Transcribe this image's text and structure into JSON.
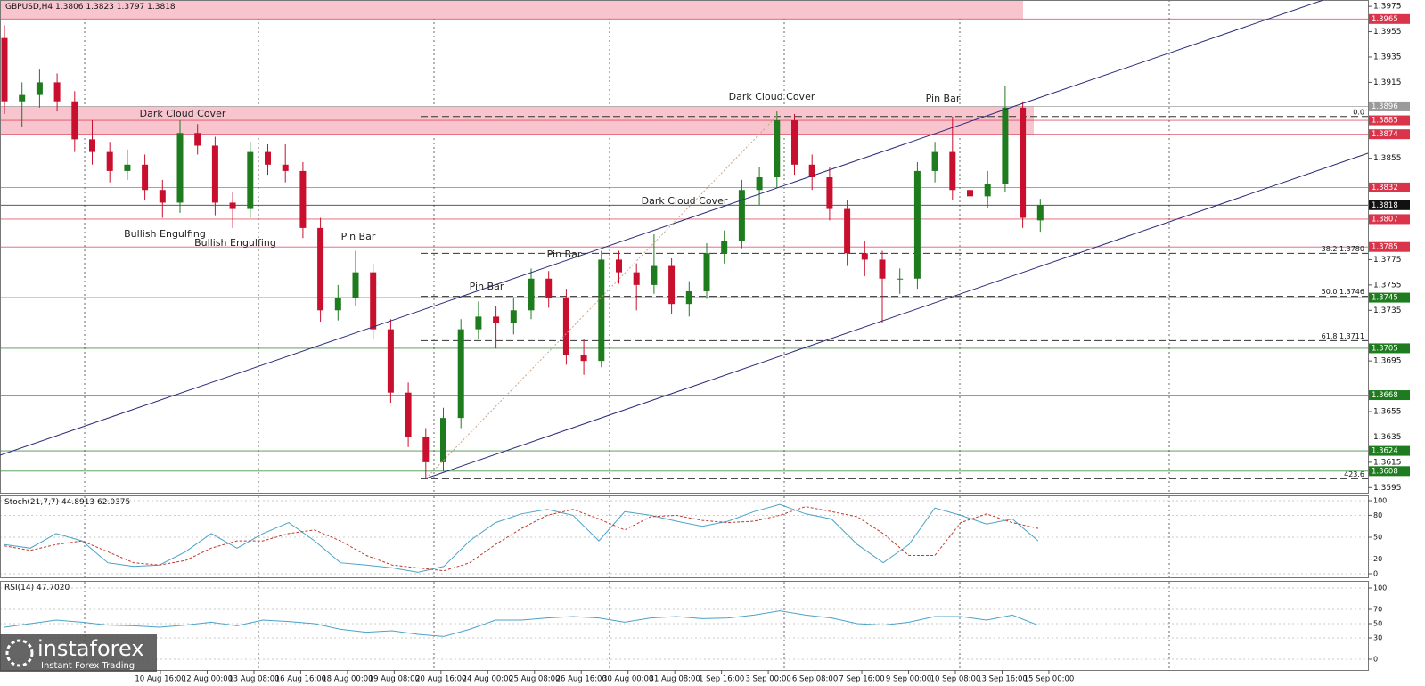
{
  "chart_data": [
    {
      "type": "candlestick",
      "symbol": "GBPUSD,H4",
      "ylim": [
        1.3591,
        1.398
      ],
      "yticks": [
        1.3595,
        1.3615,
        1.3635,
        1.3655,
        1.3695,
        1.3735,
        1.3755,
        1.3775,
        1.3855,
        1.3915,
        1.3935,
        1.3955,
        1.3975
      ],
      "up_color": "#1e7b1e",
      "down_color": "#c8102e",
      "candles": [
        [
          1.395,
          1.396,
          1.389,
          1.39
        ],
        [
          1.39,
          1.3915,
          1.388,
          1.3905
        ],
        [
          1.3905,
          1.3925,
          1.3895,
          1.3915
        ],
        [
          1.3915,
          1.3922,
          1.3892,
          1.39
        ],
        [
          1.39,
          1.3908,
          1.386,
          1.387
        ],
        [
          1.387,
          1.3885,
          1.385,
          1.386
        ],
        [
          1.386,
          1.3868,
          1.3836,
          1.3845
        ],
        [
          1.3845,
          1.3862,
          1.3838,
          1.385
        ],
        [
          1.385,
          1.3858,
          1.3822,
          1.383
        ],
        [
          1.383,
          1.3838,
          1.3808,
          1.382
        ],
        [
          1.382,
          1.3885,
          1.3812,
          1.3875
        ],
        [
          1.3875,
          1.3882,
          1.3858,
          1.3865
        ],
        [
          1.3865,
          1.3872,
          1.381,
          1.382
        ],
        [
          1.382,
          1.3828,
          1.38,
          1.3815
        ],
        [
          1.3815,
          1.3868,
          1.3808,
          1.386
        ],
        [
          1.386,
          1.3866,
          1.3842,
          1.385
        ],
        [
          1.385,
          1.3866,
          1.3836,
          1.3845
        ],
        [
          1.3845,
          1.3852,
          1.3792,
          1.38
        ],
        [
          1.38,
          1.3808,
          1.3726,
          1.3735
        ],
        [
          1.3735,
          1.3755,
          1.3727,
          1.3745
        ],
        [
          1.3745,
          1.3782,
          1.3738,
          1.3765
        ],
        [
          1.3765,
          1.3772,
          1.3712,
          1.372
        ],
        [
          1.372,
          1.3728,
          1.3662,
          1.367
        ],
        [
          1.367,
          1.3678,
          1.3627,
          1.3635
        ],
        [
          1.3635,
          1.3642,
          1.3603,
          1.3615
        ],
        [
          1.3615,
          1.3658,
          1.3608,
          1.365
        ],
        [
          1.365,
          1.3728,
          1.3642,
          1.372
        ],
        [
          1.372,
          1.3742,
          1.3712,
          1.373
        ],
        [
          1.373,
          1.3738,
          1.3705,
          1.3725
        ],
        [
          1.3725,
          1.3745,
          1.3716,
          1.3735
        ],
        [
          1.3735,
          1.3768,
          1.3728,
          1.376
        ],
        [
          1.376,
          1.3766,
          1.3737,
          1.3745
        ],
        [
          1.3745,
          1.3752,
          1.3692,
          1.37
        ],
        [
          1.37,
          1.3712,
          1.3684,
          1.3695
        ],
        [
          1.3695,
          1.3782,
          1.369,
          1.3775
        ],
        [
          1.3775,
          1.3782,
          1.3756,
          1.3765
        ],
        [
          1.3765,
          1.3772,
          1.3735,
          1.3755
        ],
        [
          1.3755,
          1.3795,
          1.3748,
          1.377
        ],
        [
          1.377,
          1.3776,
          1.3732,
          1.374
        ],
        [
          1.374,
          1.3758,
          1.373,
          1.375
        ],
        [
          1.375,
          1.3788,
          1.3744,
          1.378
        ],
        [
          1.378,
          1.3798,
          1.3772,
          1.379
        ],
        [
          1.379,
          1.3838,
          1.3784,
          1.383
        ],
        [
          1.383,
          1.3848,
          1.3818,
          1.384
        ],
        [
          1.384,
          1.3892,
          1.3832,
          1.3885
        ],
        [
          1.3885,
          1.389,
          1.3842,
          1.385
        ],
        [
          1.385,
          1.3858,
          1.383,
          1.384
        ],
        [
          1.384,
          1.3848,
          1.3806,
          1.3815
        ],
        [
          1.3815,
          1.3822,
          1.377,
          1.378
        ],
        [
          1.378,
          1.379,
          1.3762,
          1.3775
        ],
        [
          1.3775,
          1.3782,
          1.3725,
          1.376
        ],
        [
          1.376,
          1.3768,
          1.3748,
          1.376
        ],
        [
          1.376,
          1.3852,
          1.3752,
          1.3845
        ],
        [
          1.3845,
          1.3868,
          1.3836,
          1.386
        ],
        [
          1.386,
          1.3888,
          1.3822,
          1.383
        ],
        [
          1.383,
          1.3838,
          1.38,
          1.3825
        ],
        [
          1.3825,
          1.3845,
          1.3816,
          1.3835
        ],
        [
          1.3835,
          1.3912,
          1.3828,
          1.3895
        ],
        [
          1.3895,
          1.39,
          1.38,
          1.3808
        ],
        [
          1.3806,
          1.3823,
          1.3797,
          1.3818
        ]
      ],
      "zones": [
        [
          1.398,
          1.3965
        ],
        [
          1.3896,
          1.3874
        ]
      ],
      "zone_color": "#f8c4ce",
      "levels": [
        {
          "value": 1.3965,
          "color": "#d9344a"
        },
        {
          "value": 1.3896,
          "color": "#9a9a9a"
        },
        {
          "value": 1.3885,
          "color": "#d9344a"
        },
        {
          "value": 1.3874,
          "color": "#d9344a"
        },
        {
          "value": 1.3832,
          "color": "#d9344a"
        },
        {
          "value": 1.3818,
          "color": "#111111"
        },
        {
          "value": 1.3807,
          "color": "#d9344a"
        },
        {
          "value": 1.3785,
          "color": "#d9344a"
        },
        {
          "value": 1.3745,
          "color": "#1e7b1e"
        },
        {
          "value": 1.3705,
          "color": "#1e7b1e"
        },
        {
          "value": 1.3668,
          "color": "#1e7b1e"
        },
        {
          "value": 1.3624,
          "color": "#1e7b1e"
        },
        {
          "value": 1.3608,
          "color": "#1e7b1e"
        }
      ],
      "fib": [
        {
          "value": 1.3888,
          "label": "0.0"
        },
        {
          "value": 1.378,
          "label": "38.2 1.3780"
        },
        {
          "value": 1.3746,
          "label": "50.0 1.3746"
        },
        {
          "value": 1.3711,
          "label": "61.8 1.3711"
        },
        {
          "value": 1.3602,
          "label": "423.6"
        }
      ],
      "annotations": [
        "Dark Cloud Cover",
        "Bullish Engulfing",
        "Bullish Engulfing",
        "Pin Bar",
        "Pin Bar",
        "Pin Bar",
        "Dark Cloud Cover",
        "Dark Cloud Cover",
        "Pin Bar"
      ],
      "x_labels": [
        "10 Aug 16:00",
        "12 Aug 00:00",
        "13 Aug 08:00",
        "16 Aug 16:00",
        "18 Aug 00:00",
        "19 Aug 08:00",
        "20 Aug 16:00",
        "24 Aug 00:00",
        "25 Aug 08:00",
        "26 Aug 16:00",
        "30 Aug 00:00",
        "31 Aug 08:00",
        "1 Sep 16:00",
        "3 Sep 00:00",
        "6 Sep 08:00",
        "7 Sep 16:00",
        "9 Sep 00:00",
        "10 Sep 08:00",
        "13 Sep 16:00",
        "15 Sep 00:00"
      ]
    },
    {
      "type": "line",
      "title": "Stoch(21,7,7)",
      "ylim": [
        0,
        100
      ],
      "yticks": [
        0,
        20,
        50,
        80,
        100
      ],
      "series": [
        {
          "color": "#4aa3c8",
          "dash": false,
          "values": [
            40,
            35,
            55,
            45,
            15,
            10,
            12,
            30,
            55,
            35,
            55,
            70,
            45,
            15,
            12,
            8,
            2,
            10,
            45,
            70,
            82,
            88,
            80,
            45,
            85,
            80,
            72,
            65,
            72,
            85,
            95,
            82,
            75,
            40,
            15,
            40,
            90,
            80,
            68,
            75,
            44.8913
          ]
        },
        {
          "color": "#c0392b",
          "dash": true,
          "values": [
            38,
            32,
            40,
            45,
            30,
            15,
            12,
            18,
            35,
            45,
            45,
            55,
            60,
            45,
            25,
            12,
            8,
            4,
            15,
            40,
            62,
            80,
            88,
            75,
            60,
            78,
            80,
            73,
            70,
            72,
            80,
            92,
            85,
            78,
            55,
            25,
            25,
            70,
            82,
            70,
            62.0375
          ]
        }
      ]
    },
    {
      "type": "line",
      "title": "RSI(14)",
      "ylim": [
        0,
        100
      ],
      "yticks": [
        0,
        30,
        50,
        70,
        100
      ],
      "series": [
        {
          "color": "#4aa3c8",
          "dash": false,
          "values": [
            45,
            50,
            55,
            52,
            48,
            47,
            45,
            48,
            52,
            47,
            55,
            53,
            50,
            42,
            38,
            40,
            35,
            32,
            42,
            55,
            55,
            58,
            60,
            58,
            52,
            58,
            60,
            57,
            58,
            62,
            68,
            62,
            58,
            50,
            48,
            52,
            60,
            60,
            55,
            62,
            47.702
          ],
          "value_labels": [
            null,
            null,
            null,
            null,
            null,
            null,
            null,
            null,
            null,
            null,
            null,
            null,
            null,
            null,
            null,
            null,
            null,
            null,
            null,
            null,
            null,
            null,
            null,
            null,
            null,
            null,
            null,
            null,
            null,
            null,
            null,
            null,
            null,
            null,
            null,
            null,
            null,
            null,
            null,
            null,
            "47.7020"
          ]
        }
      ]
    }
  ],
  "branding": {
    "name": "instaforex",
    "tagline": "Instant Forex Trading"
  }
}
